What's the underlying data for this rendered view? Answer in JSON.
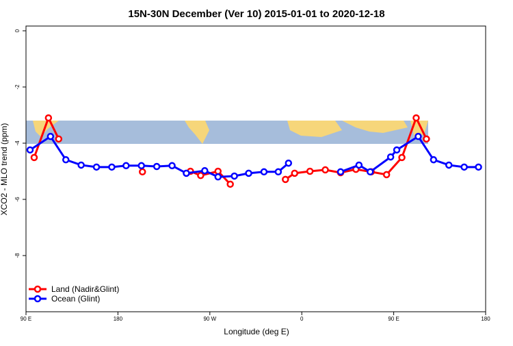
{
  "chart_data": {
    "type": "line",
    "title": "15N-30N December (Ver 10)   2015-01-01 to 2020-12-18",
    "x_label": "Longitude (deg E)",
    "y_label": "XCO2 - MLO trend (ppm)",
    "xlim": [
      90,
      540
    ],
    "xticks": [
      {
        "value": 90,
        "label": "90 E"
      },
      180,
      {
        "value": 270,
        "label": "90 W"
      },
      {
        "value": 360,
        "label": "0"
      },
      {
        "value": 450,
        "label": "90 E"
      },
      {
        "value": 540,
        "label": "180"
      }
    ],
    "ylim": [
      -10,
      0.17
    ],
    "yticks": [
      0,
      -2,
      -4,
      -6,
      -8
    ],
    "legend": "bottom-left",
    "series": [
      {
        "name": "Land (Nadir&Glint)",
        "color": "#ff0000",
        "x": [
          98,
          112,
          122,
          null,
          204,
          null,
          251,
          261,
          278,
          290,
          null,
          344,
          353,
          368,
          383,
          398,
          413,
          428,
          443,
          458,
          472,
          482
        ],
        "values": [
          -4.51,
          -3.1,
          -3.85,
          null,
          -5.02,
          null,
          -5.0,
          -5.15,
          -5.0,
          -5.46,
          null,
          -5.29,
          -5.07,
          -5.0,
          -4.95,
          -5.05,
          -4.93,
          -5.02,
          -5.12,
          -4.51,
          -3.1,
          -3.85
        ]
      },
      {
        "name": "Ocean (Glint)",
        "color": "#0000ff",
        "x": [
          94,
          114,
          129,
          144,
          159,
          174,
          188,
          203,
          218,
          233,
          247,
          265,
          278,
          294,
          308,
          323,
          337,
          347,
          null,
          398,
          416,
          427,
          447,
          453,
          474,
          489,
          504,
          519,
          533
        ],
        "values": [
          -4.24,
          -3.76,
          -4.59,
          -4.78,
          -4.85,
          -4.85,
          -4.8,
          -4.8,
          -4.83,
          -4.8,
          -5.07,
          -4.98,
          -5.2,
          -5.17,
          -5.07,
          -5.02,
          -5.02,
          -4.71,
          null,
          -5.02,
          -4.78,
          -5.02,
          -4.49,
          -4.24,
          -3.76,
          -4.59,
          -4.78,
          -4.85,
          -4.85
        ]
      }
    ]
  }
}
